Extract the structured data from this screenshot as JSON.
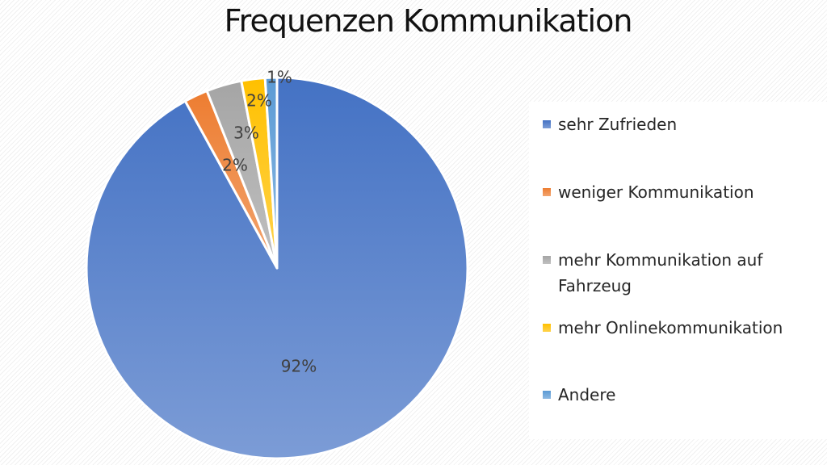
{
  "chart_data": {
    "type": "pie",
    "title": "Frequenzen Kommunikation",
    "slices": [
      {
        "name": "sehr Zufrieden",
        "value": 92,
        "label": "92%",
        "color": "#4472c4"
      },
      {
        "name": "weniger Kommunikation",
        "value": 2,
        "label": "2%",
        "color": "#ed7d31"
      },
      {
        "name": "mehr Kommunikation auf Fahrzeug",
        "value": 3,
        "label": "3%",
        "color": "#a5a5a5"
      },
      {
        "name": "mehr Onlinekommunikation",
        "value": 2,
        "label": "2%",
        "color": "#ffc000"
      },
      {
        "name": "Andere",
        "value": 1,
        "label": "1%",
        "color": "#5b9bd5"
      }
    ],
    "legend_position": "right"
  }
}
